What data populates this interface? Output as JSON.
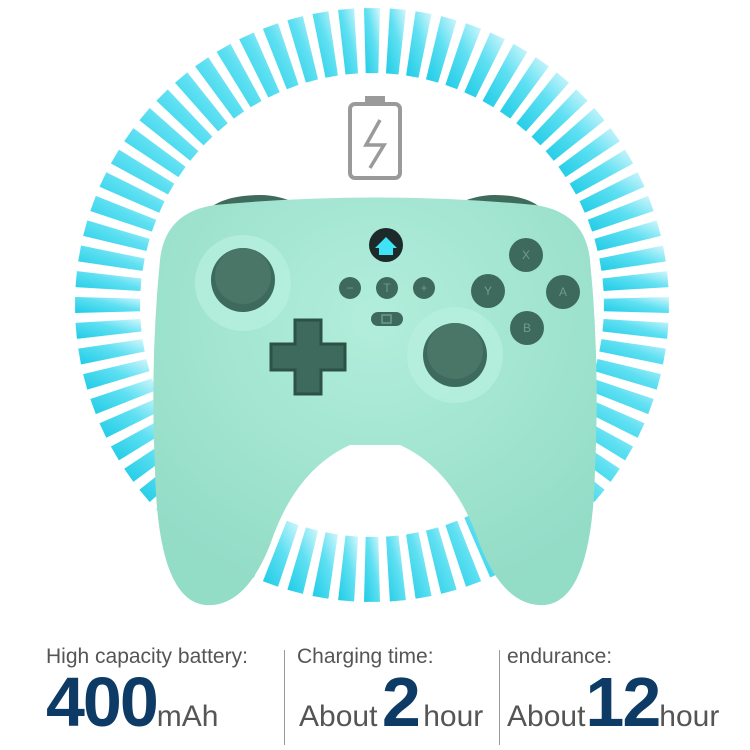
{
  "colors": {
    "ring_primary": "#2fd6ee",
    "ring_light": "#bff3fb",
    "controller_body": "#a6e8d4",
    "controller_buttons": "#3e6a5d",
    "spec_number": "#0d3b66",
    "battery_icon": "#9a9a9a"
  },
  "icons": {
    "battery": "battery-charging-icon",
    "home": "home-icon"
  },
  "controller": {
    "face_buttons": [
      "X",
      "Y",
      "A",
      "B"
    ],
    "center_buttons": [
      "−",
      "T",
      "+"
    ]
  },
  "specs": [
    {
      "label": "High capacity battery:",
      "prefix": "",
      "value": "400",
      "unit": "mAh"
    },
    {
      "label": "Charging time:",
      "prefix": "About",
      "value": "2",
      "unit": "hour"
    },
    {
      "label": "endurance:",
      "prefix": "About",
      "value": "12",
      "unit": "hour"
    }
  ]
}
